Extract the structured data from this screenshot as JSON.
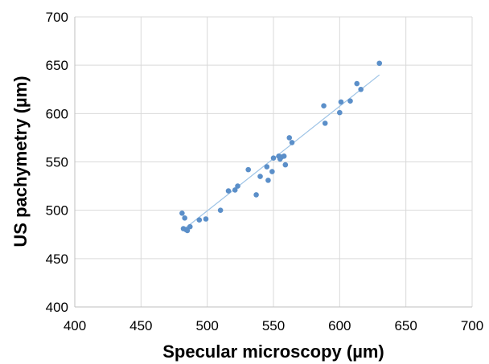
{
  "chart_data": {
    "type": "scatter",
    "xlabel": "Specular microscopy (µm)",
    "ylabel": "US pachymetry (µm)",
    "xlim": [
      400,
      700
    ],
    "ylim": [
      400,
      700
    ],
    "x_ticks": [
      400,
      450,
      500,
      550,
      600,
      650,
      700
    ],
    "y_ticks": [
      400,
      450,
      500,
      550,
      600,
      650,
      700
    ],
    "grid": true,
    "legend": "none",
    "point_color": "#5b8fc9",
    "trendline_color": "#9dc3e6",
    "trendline": {
      "x": [
        483,
        630
      ],
      "y": [
        481,
        640
      ]
    },
    "series": [
      {
        "x": [
          481,
          482,
          483,
          484,
          485,
          487,
          494,
          499,
          510,
          516,
          521,
          523,
          531,
          537,
          540,
          545,
          546,
          549,
          550,
          554,
          555,
          556,
          558,
          559,
          562,
          564,
          588,
          589,
          600,
          601,
          608,
          613,
          616,
          630
        ],
        "y": [
          497,
          481,
          492,
          480,
          479,
          483,
          490,
          491,
          500,
          520,
          521,
          525,
          542,
          516,
          535,
          545,
          531,
          540,
          554,
          556,
          553,
          555,
          556,
          547,
          575,
          570,
          608,
          590,
          601,
          612,
          613,
          631,
          625,
          652
        ]
      }
    ]
  }
}
